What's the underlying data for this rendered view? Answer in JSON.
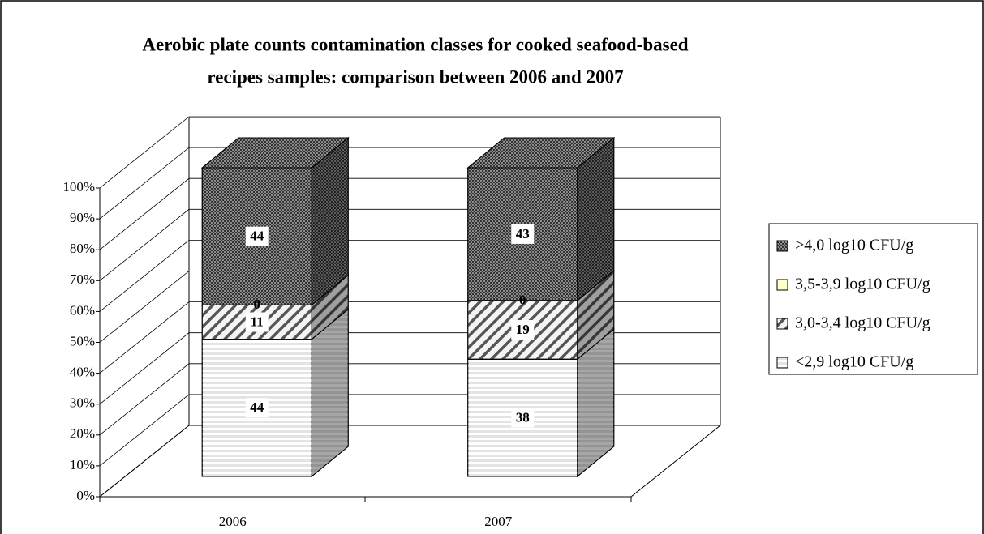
{
  "chart_data": {
    "type": "bar",
    "stacking": "percent",
    "title": [
      "Aerobic plate counts contamination classes for cooked seafood-based",
      "recipes samples: comparison between 2006 and 2007"
    ],
    "categories": [
      "2006",
      "2007"
    ],
    "series": [
      {
        "name": "<2,9 log10 CFU/g",
        "color": "#e4e4e4",
        "values": [
          44,
          38
        ]
      },
      {
        "name": "3,0-3,4 log10 CFU/g",
        "color": "#f4f4f4",
        "values": [
          11,
          19
        ]
      },
      {
        "name": "3,5-3,9 log10 CFU/g",
        "color": "#ffffcc",
        "values": [
          0,
          0
        ]
      },
      {
        "name": ">4,0 log10 CFU/g",
        "color": "#8c8c8c",
        "values": [
          44,
          43
        ]
      }
    ],
    "ylim": [
      0,
      100
    ],
    "yticks": [
      {
        "value": 0,
        "label": "0%"
      },
      {
        "value": 10,
        "label": "10%"
      },
      {
        "value": 20,
        "label": "20%"
      },
      {
        "value": 30,
        "label": "30%"
      },
      {
        "value": 40,
        "label": "40%"
      },
      {
        "value": 50,
        "label": "50%"
      },
      {
        "value": 60,
        "label": "60%"
      },
      {
        "value": 70,
        "label": "70%"
      },
      {
        "value": 80,
        "label": "80%"
      },
      {
        "value": 90,
        "label": "90%"
      },
      {
        "value": 100,
        "label": "100%"
      }
    ],
    "grid": true,
    "legend": "right"
  }
}
